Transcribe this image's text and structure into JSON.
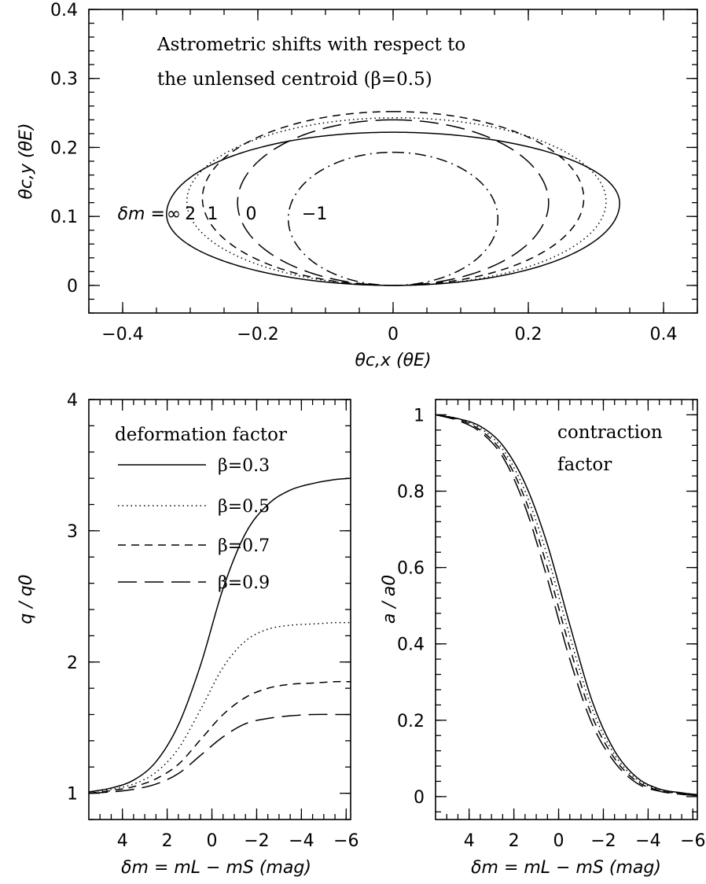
{
  "charts": [
    {
      "id": "top",
      "type": "line",
      "title_lines": [
        "Astrometric shifts with respect to",
        "the unlensed centroid (β=0.5)"
      ],
      "xlabel": "θc,x (θE)",
      "ylabel": "θc,y (θE)",
      "xlim": [
        -0.45,
        0.45
      ],
      "ylim": [
        -0.04,
        0.4
      ],
      "xticks": [
        -0.4,
        -0.2,
        0,
        0.2,
        0.4
      ],
      "xtick_labels": [
        "−0.4",
        "−0.2",
        "0",
        "0.2",
        "0.4"
      ],
      "yticks": [
        0,
        0.1,
        0.2,
        0.3,
        0.4
      ],
      "ytick_labels": [
        "0",
        "0.1",
        "0.2",
        "0.3",
        "0.4"
      ],
      "annotations": {
        "prefix": "δm =",
        "labels": [
          {
            "text": "∞",
            "x": -0.335
          },
          {
            "text": "2",
            "x": -0.308
          },
          {
            "text": "1",
            "x": -0.275
          },
          {
            "text": "0",
            "x": -0.218
          },
          {
            "text": "−1",
            "x": -0.135
          }
        ],
        "y": 0.105
      },
      "series": [
        {
          "dm": "∞",
          "style": "solid",
          "xmin": -0.335,
          "xmax": 0.335,
          "ytop": 0.222,
          "ybottom": 0.0,
          "tilt": 0.016
        },
        {
          "dm": "2",
          "style": "dotted",
          "xmin": -0.305,
          "xmax": 0.315,
          "ytop": 0.243,
          "ybottom": 0.0,
          "tilt": 0.0
        },
        {
          "dm": "1",
          "style": "dashed",
          "xmin": -0.282,
          "xmax": 0.282,
          "ytop": 0.252,
          "ybottom": 0.0,
          "tilt": 0.0
        },
        {
          "dm": "0",
          "style": "longdash",
          "xmin": -0.23,
          "xmax": 0.23,
          "ytop": 0.24,
          "ybottom": 0.0,
          "tilt": 0.0
        },
        {
          "dm": "−1",
          "style": "dashdot",
          "xmin": -0.155,
          "xmax": 0.155,
          "ytop": 0.193,
          "ybottom": 0.0,
          "tilt": 0.0
        }
      ]
    },
    {
      "id": "bottom-left",
      "type": "line",
      "title": "deformation factor",
      "xlabel": "δm = mL − mS (mag)",
      "ylabel": "q / q0",
      "xlim": [
        5.5,
        -6.2
      ],
      "ylim": [
        0.8,
        4.0
      ],
      "xticks": [
        4,
        2,
        0,
        -2,
        -4,
        -6
      ],
      "xtick_labels": [
        "4",
        "2",
        "0",
        "−2",
        "−4",
        "−6"
      ],
      "yticks": [
        1,
        2,
        3,
        4
      ],
      "ytick_labels": [
        "1",
        "2",
        "3",
        "4"
      ],
      "legend": [
        {
          "label": "β=0.3",
          "style": "solid"
        },
        {
          "label": "β=0.5",
          "style": "dotted"
        },
        {
          "label": "β=0.7",
          "style": "dashed"
        },
        {
          "label": "β=0.9",
          "style": "longdash"
        }
      ],
      "series": [
        {
          "name": "β=0.3",
          "style": "solid",
          "x": [
            5.5,
            4.5,
            3.5,
            2.5,
            1.5,
            0.5,
            -0.5,
            -1.5,
            -2.5,
            -3.5,
            -4.5,
            -5.5,
            -6.2
          ],
          "y": [
            1.01,
            1.04,
            1.1,
            1.24,
            1.52,
            1.98,
            2.56,
            2.98,
            3.2,
            3.31,
            3.36,
            3.39,
            3.4
          ]
        },
        {
          "name": "β=0.5",
          "style": "dotted",
          "x": [
            5.5,
            4.5,
            3.5,
            2.5,
            1.5,
            0.5,
            -0.5,
            -1.5,
            -2.5,
            -3.5,
            -4.5,
            -5.5,
            -6.2
          ],
          "y": [
            1.01,
            1.03,
            1.07,
            1.16,
            1.34,
            1.64,
            1.96,
            2.16,
            2.25,
            2.28,
            2.29,
            2.3,
            2.3
          ]
        },
        {
          "name": "β=0.7",
          "style": "dashed",
          "x": [
            5.5,
            4.5,
            3.5,
            2.5,
            1.5,
            0.5,
            -0.5,
            -1.5,
            -2.5,
            -3.5,
            -4.5,
            -5.5,
            -6.2
          ],
          "y": [
            1.0,
            1.02,
            1.05,
            1.11,
            1.22,
            1.41,
            1.6,
            1.73,
            1.8,
            1.83,
            1.84,
            1.85,
            1.85
          ]
        },
        {
          "name": "β=0.9",
          "style": "longdash",
          "x": [
            5.5,
            4.5,
            3.5,
            2.5,
            1.5,
            0.5,
            -0.5,
            -1.5,
            -2.5,
            -3.5,
            -4.5,
            -5.5,
            -6.2
          ],
          "y": [
            1.0,
            1.01,
            1.03,
            1.07,
            1.15,
            1.29,
            1.43,
            1.53,
            1.57,
            1.59,
            1.6,
            1.6,
            1.6
          ]
        }
      ]
    },
    {
      "id": "bottom-right",
      "type": "line",
      "title_lines": [
        "contraction",
        "factor"
      ],
      "xlabel": "δm = mL − mS (mag)",
      "ylabel": "a / a0",
      "xlim": [
        5.5,
        -6.2
      ],
      "ylim": [
        -0.06,
        1.04
      ],
      "xticks": [
        4,
        2,
        0,
        -2,
        -4,
        -6
      ],
      "xtick_labels": [
        "4",
        "2",
        "0",
        "−2",
        "−4",
        "−6"
      ],
      "yticks": [
        0,
        0.2,
        0.4,
        0.6,
        0.8,
        1
      ],
      "ytick_labels": [
        "0",
        "0.2",
        "0.4",
        "0.6",
        "0.8",
        "1"
      ],
      "series": [
        {
          "name": "β=0.3",
          "style": "solid",
          "x": [
            5.5,
            4.5,
            3.5,
            2.5,
            1.5,
            0.5,
            -0.5,
            -1.5,
            -2.5,
            -3.5,
            -4.5,
            -5.5,
            -6.2
          ],
          "y": [
            1.0,
            0.99,
            0.97,
            0.92,
            0.82,
            0.66,
            0.45,
            0.25,
            0.12,
            0.05,
            0.02,
            0.01,
            0.005
          ]
        },
        {
          "name": "β=0.5",
          "style": "dotted",
          "x": [
            5.5,
            4.5,
            3.5,
            2.5,
            1.5,
            0.5,
            -0.5,
            -1.5,
            -2.5,
            -3.5,
            -4.5,
            -5.5,
            -6.2
          ],
          "y": [
            1.0,
            0.99,
            0.965,
            0.91,
            0.8,
            0.63,
            0.42,
            0.23,
            0.11,
            0.045,
            0.018,
            0.008,
            0.004
          ]
        },
        {
          "name": "β=0.7",
          "style": "dashed",
          "x": [
            5.5,
            4.5,
            3.5,
            2.5,
            1.5,
            0.5,
            -0.5,
            -1.5,
            -2.5,
            -3.5,
            -4.5,
            -5.5,
            -6.2
          ],
          "y": [
            1.0,
            0.988,
            0.96,
            0.9,
            0.78,
            0.6,
            0.39,
            0.21,
            0.1,
            0.04,
            0.016,
            0.007,
            0.003
          ]
        },
        {
          "name": "β=0.9",
          "style": "longdash",
          "x": [
            5.5,
            4.5,
            3.5,
            2.5,
            1.5,
            0.5,
            -0.5,
            -1.5,
            -2.5,
            -3.5,
            -4.5,
            -5.5,
            -6.2
          ],
          "y": [
            1.0,
            0.985,
            0.955,
            0.89,
            0.76,
            0.57,
            0.36,
            0.19,
            0.09,
            0.035,
            0.014,
            0.006,
            0.003
          ]
        }
      ]
    }
  ]
}
